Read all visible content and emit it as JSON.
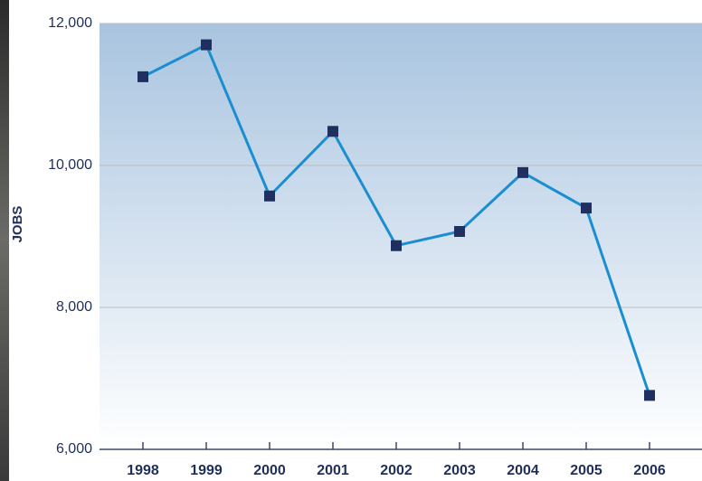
{
  "chart_data": {
    "type": "line",
    "y_label": "JOBS",
    "categories": [
      "1998",
      "1999",
      "2000",
      "2001",
      "2002",
      "2003",
      "2004",
      "2005",
      "2006"
    ],
    "series": [
      {
        "name": "Jobs",
        "color": "#1b8ed0",
        "marker_color": "#1f2f5f",
        "values": [
          11250,
          11700,
          9570,
          10480,
          8870,
          9070,
          9900,
          9400,
          6760
        ]
      }
    ],
    "ylim": [
      6000,
      12000
    ],
    "yticks": [
      {
        "value": 6000,
        "label": "6,000"
      },
      {
        "value": 8000,
        "label": "8,000"
      },
      {
        "value": 10000,
        "label": "10,000"
      },
      {
        "value": 12000,
        "label": "12,000"
      }
    ],
    "grid": true
  }
}
